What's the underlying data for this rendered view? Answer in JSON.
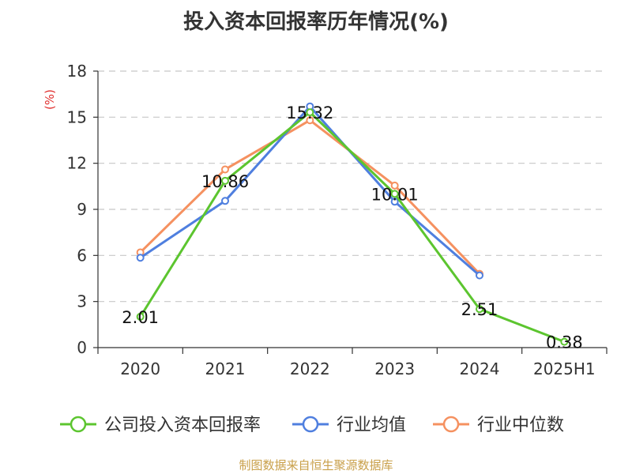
{
  "title": "投入资本回报率历年情况(%)",
  "source": "制图数据来自恒生聚源数据库",
  "chart_data": {
    "type": "line",
    "title": "投入资本回报率历年情况(%)",
    "ylabel": "(%)",
    "xlabel": "",
    "ylim": [
      0,
      18
    ],
    "yticks": [
      "0",
      "3",
      "6",
      "9",
      "12",
      "15",
      "18"
    ],
    "categories": [
      "2020",
      "2021",
      "2022",
      "2023",
      "2024",
      "2025H1"
    ],
    "grid": true,
    "legend": "bottom",
    "series": [
      {
        "name": "公司投入资本回报率",
        "color": "#5cc52f",
        "values": [
          2.01,
          10.86,
          15.32,
          10.01,
          2.51,
          0.38
        ],
        "labels": [
          "2.01",
          "10.86",
          "15.32",
          "10.01",
          "2.51",
          "0.38"
        ]
      },
      {
        "name": "行业均值",
        "color": "#4f7fdf",
        "values": [
          5.85,
          9.55,
          15.7,
          9.5,
          4.7,
          null
        ]
      },
      {
        "name": "行业中位数",
        "color": "#f59160",
        "values": [
          6.2,
          11.6,
          14.8,
          10.55,
          4.8,
          null
        ]
      }
    ]
  }
}
